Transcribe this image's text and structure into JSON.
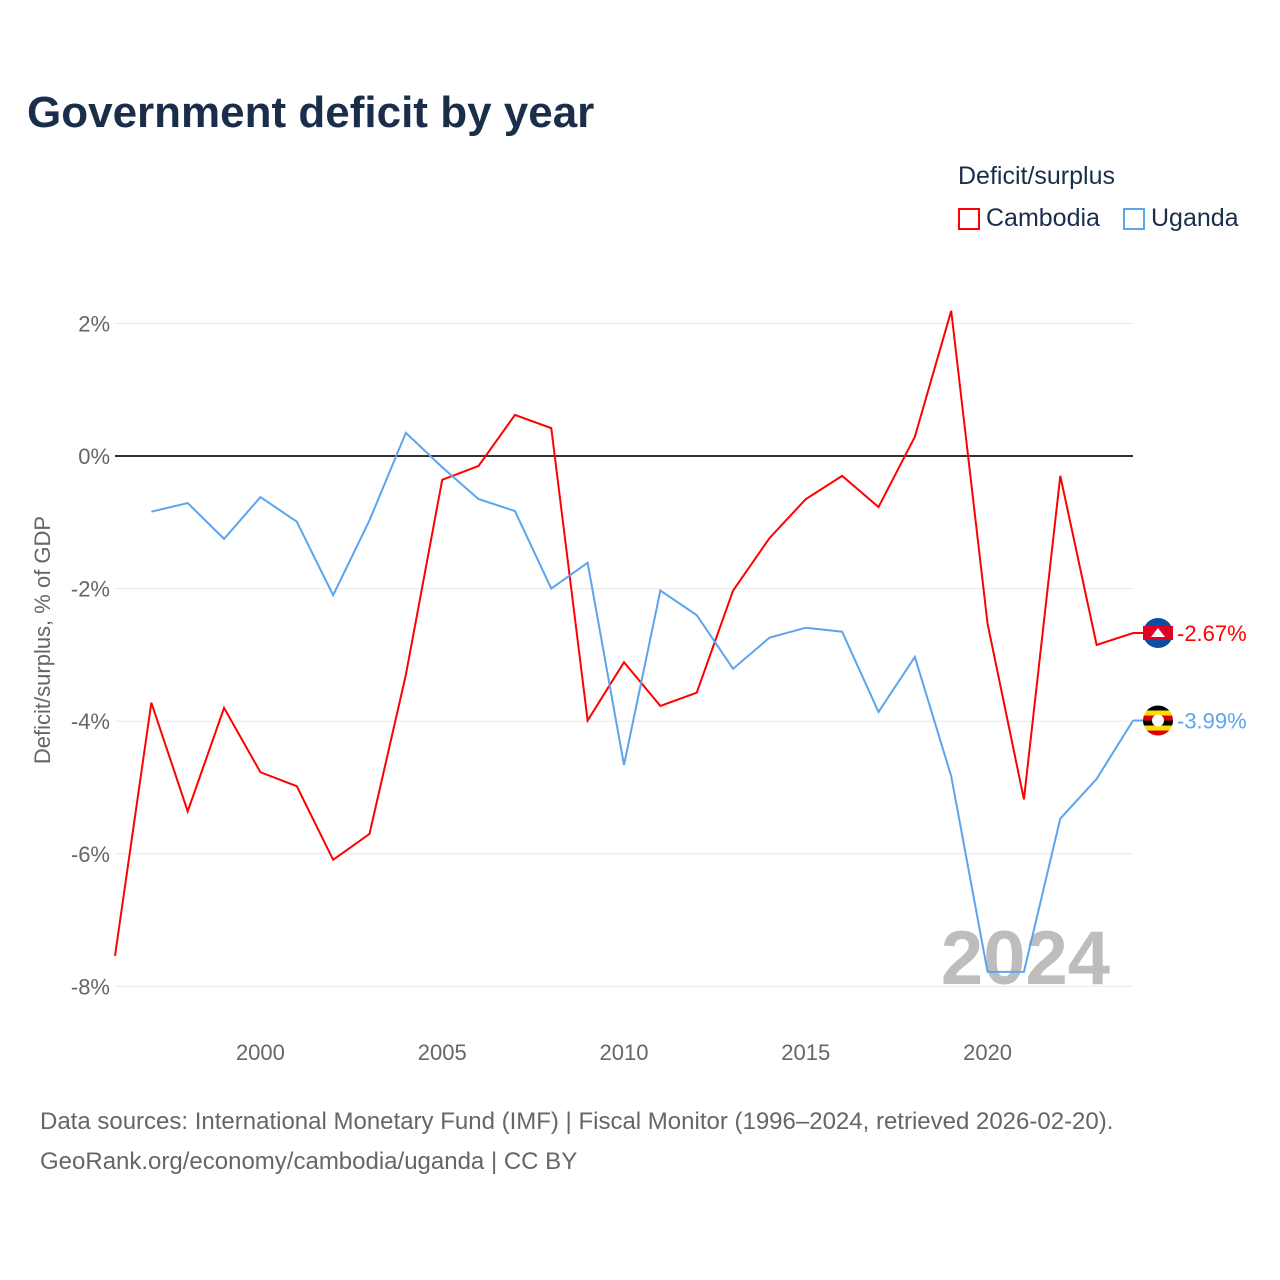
{
  "title": "Government deficit by year",
  "source_line1": "Data sources: International Monetary Fund (IMF) | Fiscal Monitor (1996–2024, retrieved 2026-02-20).",
  "source_line2": "GeoRank.org/economy/cambodia/uganda | CC BY",
  "chart_data": {
    "type": "line",
    "title": "Government deficit by year",
    "xlabel": "",
    "ylabel": "Deficit/surplus, % of GDP",
    "xlim": [
      1996,
      2024
    ],
    "ylim": [
      -8.5,
      2.5
    ],
    "xticks": [
      2000,
      2005,
      2010,
      2015,
      2020
    ],
    "yticks": [
      2,
      0,
      -2,
      -4,
      -6,
      -8
    ],
    "ytick_labels": [
      "2%",
      "0%",
      "-2%",
      "-4%",
      "-6%",
      "-8%"
    ],
    "grid": true,
    "legend_title": "Deficit/surplus",
    "legend_position": "top-right",
    "watermark": "2024",
    "series": [
      {
        "name": "Cambodia",
        "color": "#ff0000",
        "end_label": "-2.67%",
        "x": [
          1996,
          1997,
          1998,
          1999,
          2000,
          2001,
          2002,
          2003,
          2004,
          2005,
          2006,
          2007,
          2008,
          2009,
          2010,
          2011,
          2012,
          2013,
          2014,
          2015,
          2016,
          2017,
          2018,
          2019,
          2020,
          2021,
          2022,
          2023,
          2024
        ],
        "values": [
          -7.54,
          -3.72,
          -5.36,
          -3.8,
          -4.77,
          -4.98,
          -6.09,
          -5.7,
          -3.3,
          -0.36,
          -0.15,
          0.62,
          0.42,
          -3.99,
          -3.11,
          -3.77,
          -3.57,
          -2.03,
          -1.24,
          -0.65,
          -0.3,
          -0.77,
          0.29,
          2.19,
          -2.53,
          -5.18,
          -0.3,
          -2.85,
          -2.67
        ]
      },
      {
        "name": "Uganda",
        "color": "#5aa5ee",
        "end_label": "-3.99%",
        "x": [
          1997,
          1998,
          1999,
          2000,
          2001,
          2002,
          2003,
          2004,
          2005,
          2006,
          2007,
          2008,
          2009,
          2010,
          2011,
          2012,
          2013,
          2014,
          2015,
          2016,
          2017,
          2018,
          2019,
          2020,
          2021,
          2022,
          2023,
          2024
        ],
        "values": [
          -0.84,
          -0.71,
          -1.25,
          -0.62,
          -0.99,
          -2.1,
          -0.97,
          0.35,
          -0.17,
          -0.65,
          -0.83,
          -2.0,
          -1.61,
          -4.66,
          -2.03,
          -2.4,
          -3.21,
          -2.74,
          -2.59,
          -2.65,
          -3.86,
          -3.03,
          -4.83,
          -7.78,
          -7.78,
          -5.47,
          -4.87,
          -3.99
        ]
      }
    ]
  }
}
